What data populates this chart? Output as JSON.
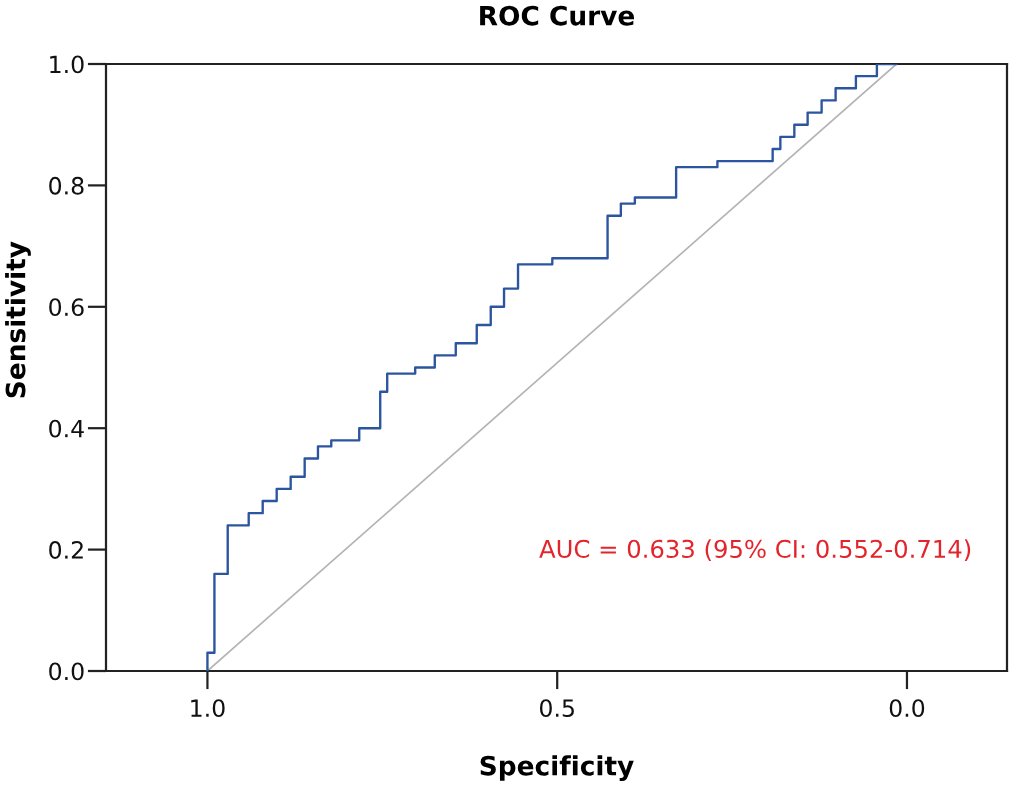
{
  "chart_data": {
    "type": "step",
    "title": "ROC Curve",
    "xlabel": "Specificity",
    "ylabel": "Sensitivity",
    "xlim": [
      1.145,
      -0.143
    ],
    "ylim": [
      0,
      1.0
    ],
    "xticks": [
      {
        "value": 1.0,
        "label": "1.0"
      },
      0.5,
      {
        "value": 0,
        "label": "0.0"
      }
    ],
    "yticks": [
      {
        "value": 0,
        "label": "0.0"
      },
      0.2,
      0.4,
      0.6,
      0.8,
      {
        "value": 1.0,
        "label": "1.0"
      }
    ],
    "series": [
      {
        "color": "#2c55a0",
        "x": [
          1.0,
          1.0,
          0.99,
          0.971,
          0.941,
          0.921,
          0.901,
          0.881,
          0.861,
          0.842,
          0.823,
          0.783,
          0.753,
          0.743,
          0.703,
          0.675,
          0.645,
          0.615,
          0.595,
          0.576,
          0.556,
          0.507,
          0.428,
          0.409,
          0.389,
          0.33,
          0.271,
          0.192,
          0.181,
          0.161,
          0.142,
          0.122,
          0.102,
          0.073,
          0.043,
          0.015
        ],
        "values": [
          0,
          0.03,
          0.16,
          0.24,
          0.26,
          0.28,
          0.3,
          0.32,
          0.35,
          0.37,
          0.38,
          0.4,
          0.46,
          0.49,
          0.5,
          0.52,
          0.54,
          0.57,
          0.6,
          0.63,
          0.67,
          0.68,
          0.75,
          0.77,
          0.78,
          0.83,
          0.84,
          0.86,
          0.88,
          0.9,
          0.92,
          0.94,
          0.96,
          0.98,
          1.0,
          1.0
        ]
      },
      {
        "type": "line",
        "color": "#b4b4b4",
        "x": [
          1.0,
          0.015
        ],
        "values": [
          0,
          1.0
        ]
      }
    ],
    "annotations": [
      "AUC = 0.633 (95% CI: 0.552-0.714)"
    ]
  }
}
